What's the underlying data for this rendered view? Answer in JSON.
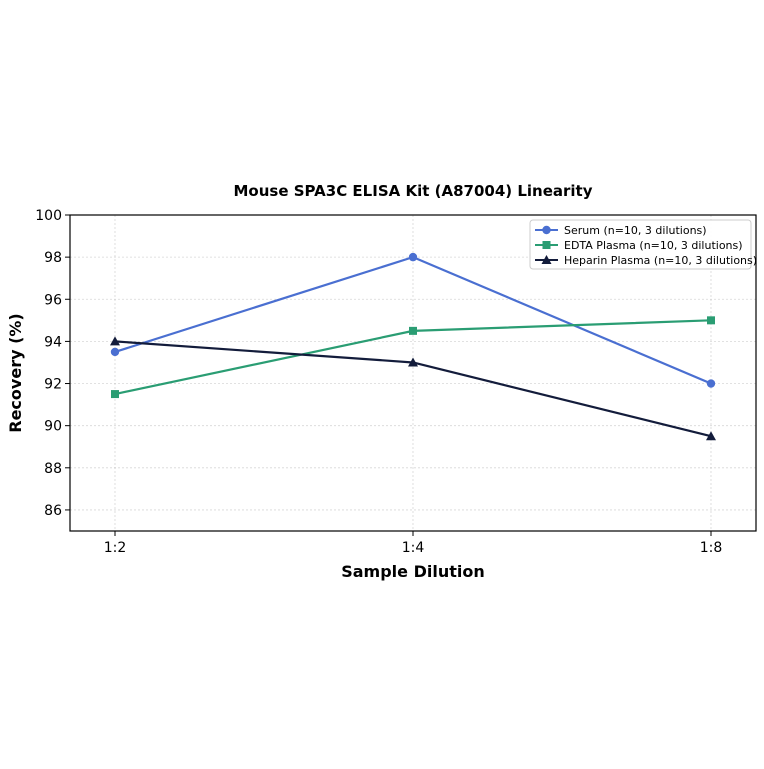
{
  "chart_data": {
    "type": "line",
    "title": "Mouse SPA3C ELISA Kit (A87004) Linearity",
    "xlabel": "Sample Dilution",
    "ylabel": "Recovery (%)",
    "categories": [
      "1:2",
      "1:4",
      "1:8"
    ],
    "ylim": [
      85,
      100
    ],
    "yticks": [
      86,
      88,
      90,
      92,
      94,
      96,
      98,
      100
    ],
    "grid": true,
    "legend_position": "top-right",
    "series": [
      {
        "name": "Serum (n=10, 3 dilutions)",
        "values": [
          93.5,
          98.0,
          92.0
        ],
        "color": "#4a6fd1",
        "marker": "circle"
      },
      {
        "name": "EDTA Plasma (n=10, 3 dilutions)",
        "values": [
          91.5,
          94.5,
          95.0
        ],
        "color": "#2a9d73",
        "marker": "square"
      },
      {
        "name": "Heparin Plasma (n=10, 3 dilutions)",
        "values": [
          94.0,
          93.0,
          89.5
        ],
        "color": "#131c3b",
        "marker": "triangle"
      }
    ]
  }
}
